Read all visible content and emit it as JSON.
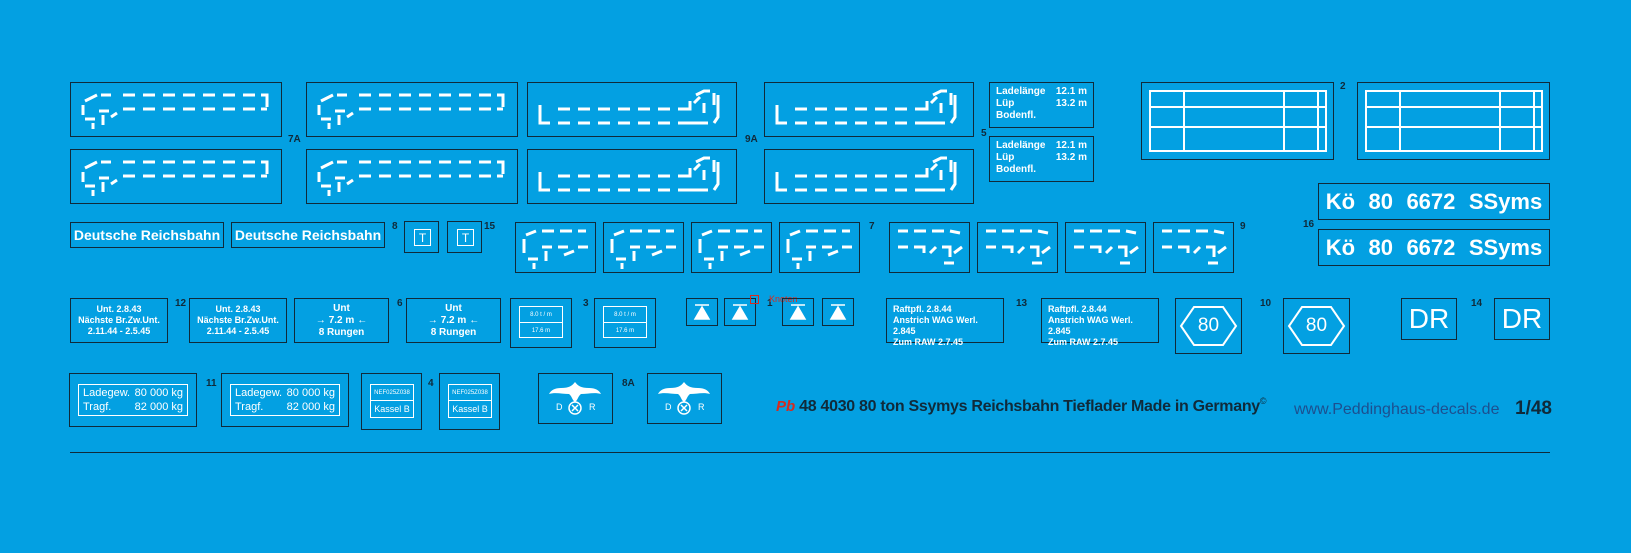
{
  "numbers": {
    "n7A": "7A",
    "n9A": "9A",
    "n5": "5",
    "n2": "2",
    "n16": "16",
    "n8": "8",
    "n15": "15",
    "n7": "7",
    "n9": "9",
    "n12": "12",
    "n6": "6",
    "n3": "3",
    "n1": "1",
    "n13": "13",
    "n10": "10",
    "n14": "14",
    "n11": "11",
    "n4": "4",
    "n8A": "8A"
  },
  "ladelaenge": {
    "l1_label": "Ladelänge",
    "l1_value": "12.1 m",
    "l2_label": "Lüp",
    "l2_value": "13.2 m",
    "l3_label": "Bodenfl."
  },
  "wagon_number": {
    "station": "Kö",
    "code": "80",
    "number": "6672",
    "class": "SSyms"
  },
  "railway_name": "Deutsche Reichsbahn",
  "t_sign": "T",
  "untersuchung": {
    "line1": "Unt. 2.8.43",
    "line2": "Nächste Br.Zw.Unt.",
    "line3": "2.11.44 - 2.5.45"
  },
  "rungen": {
    "line1": "Unt",
    "value": "7.2 m",
    "line3": "8 Rungen"
  },
  "capacity_small": {
    "top": "8.0 t / m",
    "bottom": "17.6 m"
  },
  "knoten_label": "Knoten",
  "raftpfl": {
    "line1": "Raftpfl. 2.8.44",
    "line2": "Anstrich WAG Werl. 2.845",
    "line3": "Zum RAW 2.7.45"
  },
  "axle_load": "80",
  "dr_mark": "DR",
  "ladegew": {
    "l1_label": "Ladegew.",
    "l1_value": "80 000 kg",
    "l2_label": "Tragf.",
    "l2_value": "82 000 kg"
  },
  "kassel": {
    "top": "NEF025Z038",
    "bottom": "Kassel B"
  },
  "eagle": {
    "left": "D",
    "right": "R"
  },
  "footer": {
    "logo": "Pb",
    "title": "48 4030 80 ton Ssymys Reichsbahn Tieflader  Made in Germany",
    "copyright": "©",
    "website": "www.Peddinghaus-decals.de",
    "scale": "1/48"
  },
  "colors": {
    "background": "#03a0e2",
    "line": "#102a3a",
    "accent": "#d62b1f",
    "website": "#1d4f8f"
  }
}
